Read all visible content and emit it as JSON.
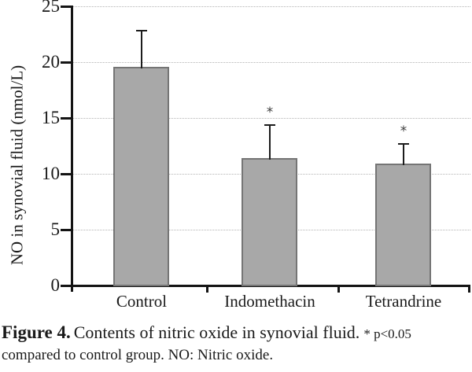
{
  "figure": {
    "caption": {
      "label": "Figure 4.",
      "title": "Contents of nitric oxide in synovial fluid.",
      "significance_note": "* p<0.05",
      "note_line2": "compared to control group.  NO: Nitric oxide."
    }
  },
  "chart_data": {
    "type": "bar",
    "title": "",
    "xlabel": "",
    "ylabel": "NO in synovial fluid (nmol/L)",
    "ylim": [
      0,
      25
    ],
    "yticks": [
      0,
      5,
      10,
      15,
      20,
      25
    ],
    "grid": "horizontal-dotted",
    "legend": "none",
    "categories": [
      "Control",
      "Indomethacin",
      "Tetrandrine"
    ],
    "values": [
      19.6,
      11.4,
      10.9
    ],
    "error_upper": [
      3.2,
      3.0,
      1.8
    ],
    "error_bar_tops": [
      22.8,
      14.4,
      12.7
    ],
    "significance_markers": [
      "",
      "*",
      "*"
    ],
    "colors": {
      "bar_fill": "#a8a8a8",
      "bar_border": "#757575",
      "axis": "#141414",
      "gridline": "#b4b4b4",
      "error_bar": "#1c1c1c",
      "text": "#1a1a1a"
    }
  }
}
